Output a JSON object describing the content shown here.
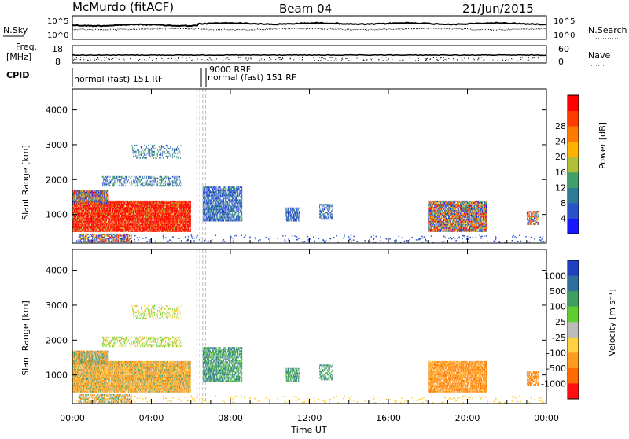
{
  "header": {
    "station": "McMurdo (fitACF)",
    "beam": "Beam 04",
    "date": "21/Jun/2015"
  },
  "noise_panel": {
    "left_label": "N.Sky",
    "right_label": "N.Search",
    "left_ticks": [
      "10^5",
      "10^0"
    ],
    "right_ticks": [
      "10^5",
      "10^0"
    ]
  },
  "freq_panel": {
    "left_label_line1": "Freq.",
    "left_label_line2": "[MHz]",
    "left_ticks": [
      "18",
      "8"
    ],
    "right_label": "Nave",
    "right_ticks": [
      "60",
      "0"
    ]
  },
  "cpid": {
    "label": "CPID",
    "entries": [
      "normal (fast) 151 RF",
      "9000 RRF",
      "normal (fast) 151 RF"
    ]
  },
  "xaxis": {
    "label": "Time UT",
    "ticks": [
      "00:00",
      "04:00",
      "08:00",
      "12:00",
      "16:00",
      "20:00",
      "00:00"
    ]
  },
  "chart_data": [
    {
      "type": "heatmap",
      "quantity": "Power",
      "ylabel": "Slant Range [km]",
      "yticks": [
        1000,
        2000,
        3000,
        4000
      ],
      "ylim": [
        180,
        4600
      ],
      "xlim_hours": [
        0,
        24
      ],
      "colorbar": {
        "label": "Power [dB]",
        "ticks": [
          "4",
          "8",
          "12",
          "16",
          "20",
          "24",
          "28"
        ],
        "colors": [
          "#1616ff",
          "#2a52c8",
          "#2f7a96",
          "#3fa06a",
          "#b0bf3a",
          "#ffb000",
          "#ff7a00",
          "#ff3b00",
          "#ff0000"
        ]
      }
    },
    {
      "type": "heatmap",
      "quantity": "Velocity",
      "ylabel": "Slant Range [km]",
      "yticks": [
        1000,
        2000,
        3000,
        4000
      ],
      "ylim": [
        180,
        4600
      ],
      "xlim_hours": [
        0,
        24
      ],
      "colorbar": {
        "label": "Velocity [m s⁻¹]",
        "ticks": [
          "1000",
          "500",
          "100",
          "25",
          "-25",
          "-100",
          "-500",
          "-1000"
        ],
        "colors": [
          "#1f3fbf",
          "#2f6fa0",
          "#3f9f60",
          "#5fcf30",
          "#bbbbbb",
          "#ffd040",
          "#ff9a20",
          "#ff6a00",
          "#ff1010"
        ]
      }
    }
  ]
}
